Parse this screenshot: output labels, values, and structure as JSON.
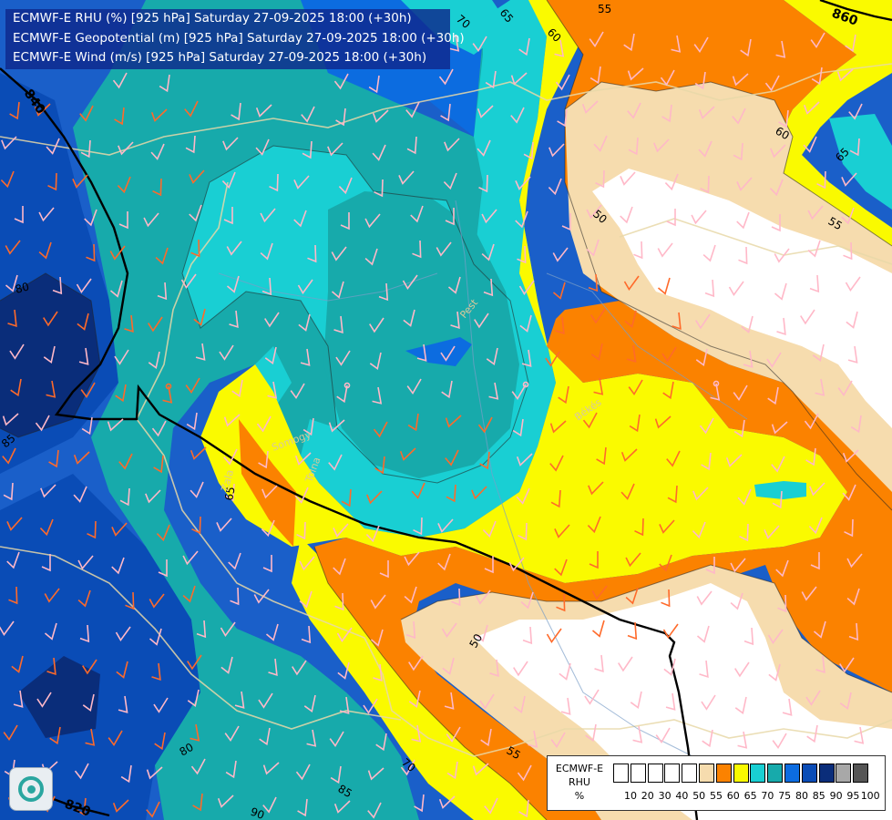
{
  "title_lines": [
    "ECMWF-E RHU (%) [925 hPa] Saturday 27-09-2025 18:00 (+30h)",
    "ECMWF-E Geopotential (m) [925 hPa] Saturday 27-09-2025 18:00 (+30h)",
    "ECMWF-E Wind (m/s) [925 hPa] Saturday 27-09-2025 18:00 (+30h)"
  ],
  "legend": {
    "label_lines": [
      "ECMWF-E",
      "RHU",
      "%"
    ],
    "levels": [
      "10",
      "20",
      "30",
      "40",
      "50",
      "55",
      "60",
      "65",
      "70",
      "75",
      "80",
      "85",
      "90",
      "95",
      "100"
    ],
    "colors": [
      "#ffffff",
      "#ffffff",
      "#ffffff",
      "#ffffff",
      "#ffffff",
      "#f6dcae",
      "#fb8200",
      "#fafa00",
      "#19cfd3",
      "#17aaab",
      "#0c6ce0",
      "#0a4cb6",
      "#0a2d7a",
      "#a8a8a8",
      "#555555"
    ]
  },
  "contour_labels": [
    "70",
    "65",
    "60",
    "55",
    "60",
    "65",
    "55",
    "50",
    "80",
    "85",
    "65",
    "50",
    "55",
    "70",
    "80",
    "85",
    "90"
  ],
  "geopotential_labels": [
    "860",
    "840",
    "820"
  ],
  "place_labels": [
    "Somogy",
    "Tolna",
    "Zala",
    "Békés",
    "Pest"
  ],
  "palette": {
    "rh_50": "#ffffff",
    "rh_55": "#f6dcae",
    "rh_60": "#fb8200",
    "rh_65": "#fafa00",
    "rh_70": "#19cfd3",
    "rh_75": "#17aaab",
    "rh_80": "#0c6ce0",
    "rh_85": "#0a4cb6",
    "rh_90": "#0a2d7a",
    "rh_95": "#a8a8a8"
  },
  "logo_icon": "ecmwf-logo-icon"
}
